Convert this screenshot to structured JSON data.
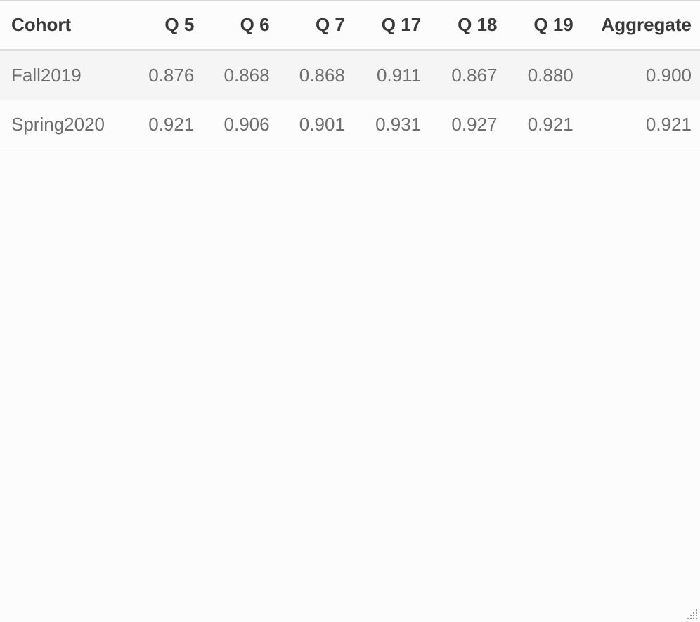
{
  "table": {
    "columns": [
      "Cohort",
      "Q 5",
      "Q 6",
      "Q 7",
      "Q 17",
      "Q 18",
      "Q 19",
      "Aggregate"
    ],
    "rows": [
      [
        "Fall2019",
        "0.876",
        "0.868",
        "0.868",
        "0.911",
        "0.867",
        "0.880",
        "0.900"
      ],
      [
        "Spring2020",
        "0.921",
        "0.906",
        "0.901",
        "0.931",
        "0.927",
        "0.921",
        "0.921"
      ]
    ]
  },
  "resize_grip": {
    "icon": "resize-grip-icon"
  }
}
